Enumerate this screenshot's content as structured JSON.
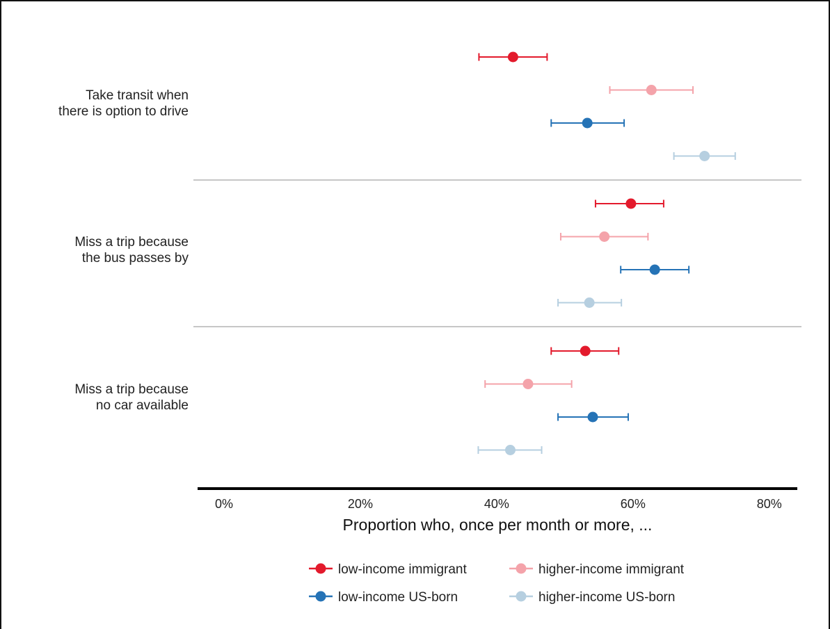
{
  "chart_data": {
    "type": "dot-errorbar",
    "xlabel": "Proportion who, once per month or more, ...",
    "xlim": [
      0,
      80
    ],
    "xticks": [
      0,
      20,
      40,
      60,
      80
    ],
    "xtick_labels": [
      "0%",
      "20%",
      "40%",
      "60%",
      "80%"
    ],
    "grid": false,
    "legend_position": "bottom",
    "categories": [
      "Take transit when there is option to drive",
      "Miss a trip because the bus passes by",
      "Miss a trip because no car available"
    ],
    "category_label_lines": [
      [
        "Take transit when",
        "there is option to drive"
      ],
      [
        "Miss a trip because",
        "the bus passes by"
      ],
      [
        "Miss a trip because",
        "no car available"
      ]
    ],
    "series": [
      {
        "name": "low-income immigrant",
        "color": "#e31a2c",
        "values": [
          42.4,
          59.7,
          53.0
        ],
        "lower": [
          37.4,
          54.5,
          48.0
        ],
        "upper": [
          47.4,
          64.5,
          57.9
        ]
      },
      {
        "name": "higher-income immigrant",
        "color": "#f4a3aa",
        "values": [
          62.7,
          55.8,
          44.6
        ],
        "lower": [
          56.6,
          49.4,
          38.3
        ],
        "upper": [
          68.8,
          62.2,
          51.0
        ]
      },
      {
        "name": "low-income US-born",
        "color": "#2573b6",
        "values": [
          53.3,
          63.2,
          54.1
        ],
        "lower": [
          48.0,
          58.2,
          49.0
        ],
        "upper": [
          58.7,
          68.2,
          59.3
        ]
      },
      {
        "name": "higher-income US-born",
        "color": "#b6cfe0",
        "values": [
          70.5,
          53.6,
          42.0
        ],
        "lower": [
          66.0,
          49.0,
          37.3
        ],
        "upper": [
          75.0,
          58.3,
          46.6
        ]
      }
    ]
  }
}
